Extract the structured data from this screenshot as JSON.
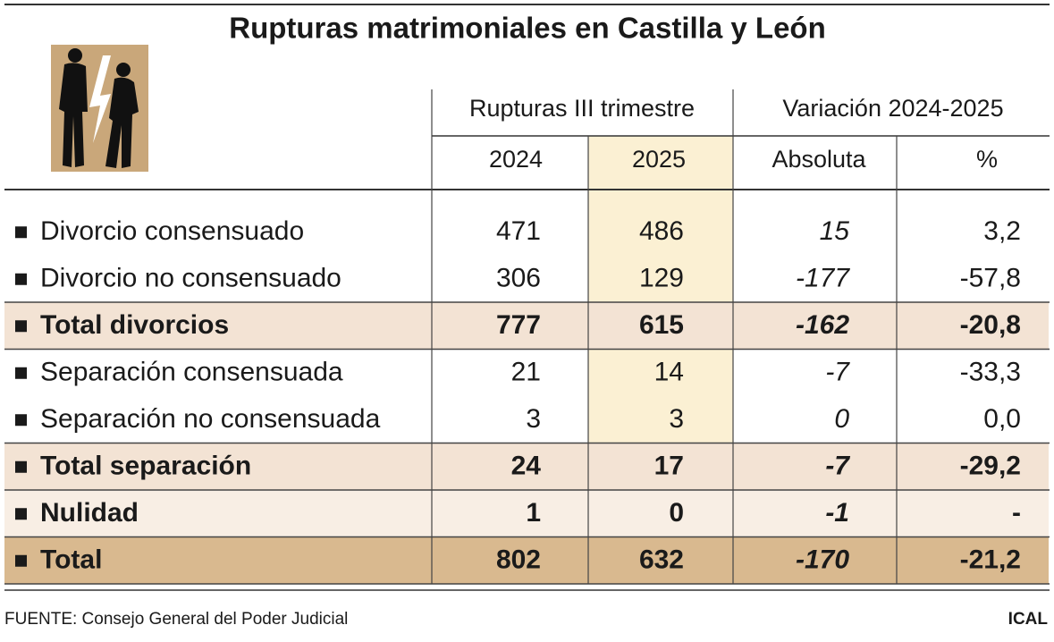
{
  "header": {
    "title": "Rupturas matrimoniales en Castilla y León"
  },
  "table": {
    "groups": [
      "Rupturas III trimestre",
      "Variación 2024-2025"
    ],
    "columns": [
      "2024",
      "2025",
      "Absoluta",
      "%"
    ],
    "rows": [
      {
        "label": "Divorcio consensuado",
        "cells": [
          "471",
          "486",
          "15",
          "3,2"
        ],
        "bold": false,
        "background": "#ffffff"
      },
      {
        "label": "Divorcio no consensuado",
        "cells": [
          "306",
          "129",
          "-177",
          "-57,8"
        ],
        "bold": false,
        "background": "#ffffff"
      },
      {
        "label": "Total divorcios",
        "cells": [
          "777",
          "615",
          "-162",
          "-20,8"
        ],
        "bold": true,
        "background": "#f3e3d4"
      },
      {
        "label": "Separación consensuada",
        "cells": [
          "21",
          "14",
          "-7",
          "-33,3"
        ],
        "bold": false,
        "background": "#ffffff"
      },
      {
        "label": "Separación no consensuada",
        "cells": [
          "3",
          "3",
          "0",
          "0,0"
        ],
        "bold": false,
        "background": "#ffffff"
      },
      {
        "label": "Total separación",
        "cells": [
          "24",
          "17",
          "-7",
          "-29,2"
        ],
        "bold": true,
        "background": "#f3e3d4"
      },
      {
        "label": "Nulidad",
        "cells": [
          "1",
          "0",
          "-1",
          "-"
        ],
        "bold": true,
        "background": "#f8eee4"
      },
      {
        "label": "Total",
        "cells": [
          "802",
          "632",
          "-170",
          "-21,2"
        ],
        "bold": true,
        "background": "#d9b98f"
      }
    ]
  },
  "footer": {
    "source": "FUENTE: Consejo General del Poder Judicial",
    "credit": "ICAL"
  }
}
